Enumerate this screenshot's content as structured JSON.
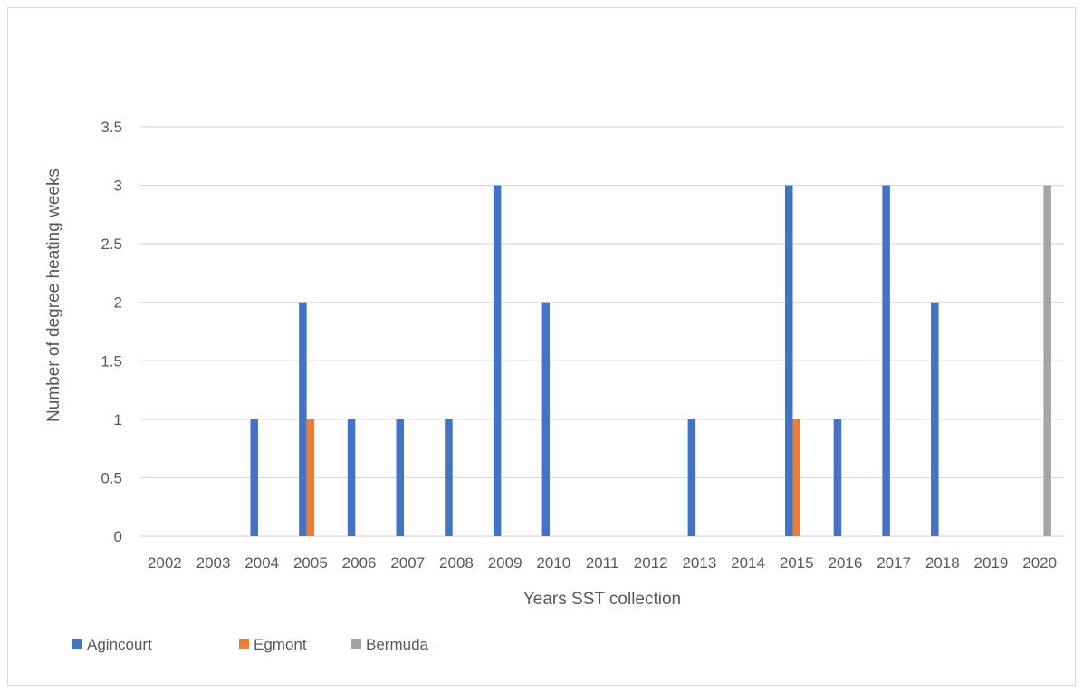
{
  "chart_data": {
    "type": "bar",
    "title": "",
    "xlabel": "Years SST collection",
    "ylabel": "Number of degree heating weeks",
    "ylim": [
      0,
      3.5
    ],
    "yticks": [
      "0",
      "0.5",
      "1",
      "1.5",
      "2",
      "2.5",
      "3",
      "3.5"
    ],
    "categories": [
      "2002",
      "2003",
      "2004",
      "2005",
      "2006",
      "2007",
      "2008",
      "2009",
      "2010",
      "2011",
      "2012",
      "2013",
      "2014",
      "2015",
      "2016",
      "2017",
      "2018",
      "2019",
      "2020"
    ],
    "series": [
      {
        "name": "Agincourt",
        "color": "#4472c4",
        "values": [
          0,
          0,
          1,
          2,
          1,
          1,
          1,
          3,
          2,
          0,
          0,
          1,
          0,
          3,
          1,
          3,
          2,
          0,
          0
        ]
      },
      {
        "name": "Egmont",
        "color": "#ed7d31",
        "values": [
          0,
          0,
          0,
          1,
          0,
          0,
          0,
          0,
          0,
          0,
          0,
          0,
          0,
          1,
          0,
          0,
          0,
          0,
          0
        ]
      },
      {
        "name": "Bermuda",
        "color": "#a5a5a5",
        "values": [
          0,
          0,
          0,
          0,
          0,
          0,
          0,
          0,
          0,
          0,
          0,
          0,
          0,
          0,
          0,
          0,
          0,
          0,
          3
        ]
      }
    ],
    "grid": true,
    "legend": "bottom-left"
  }
}
